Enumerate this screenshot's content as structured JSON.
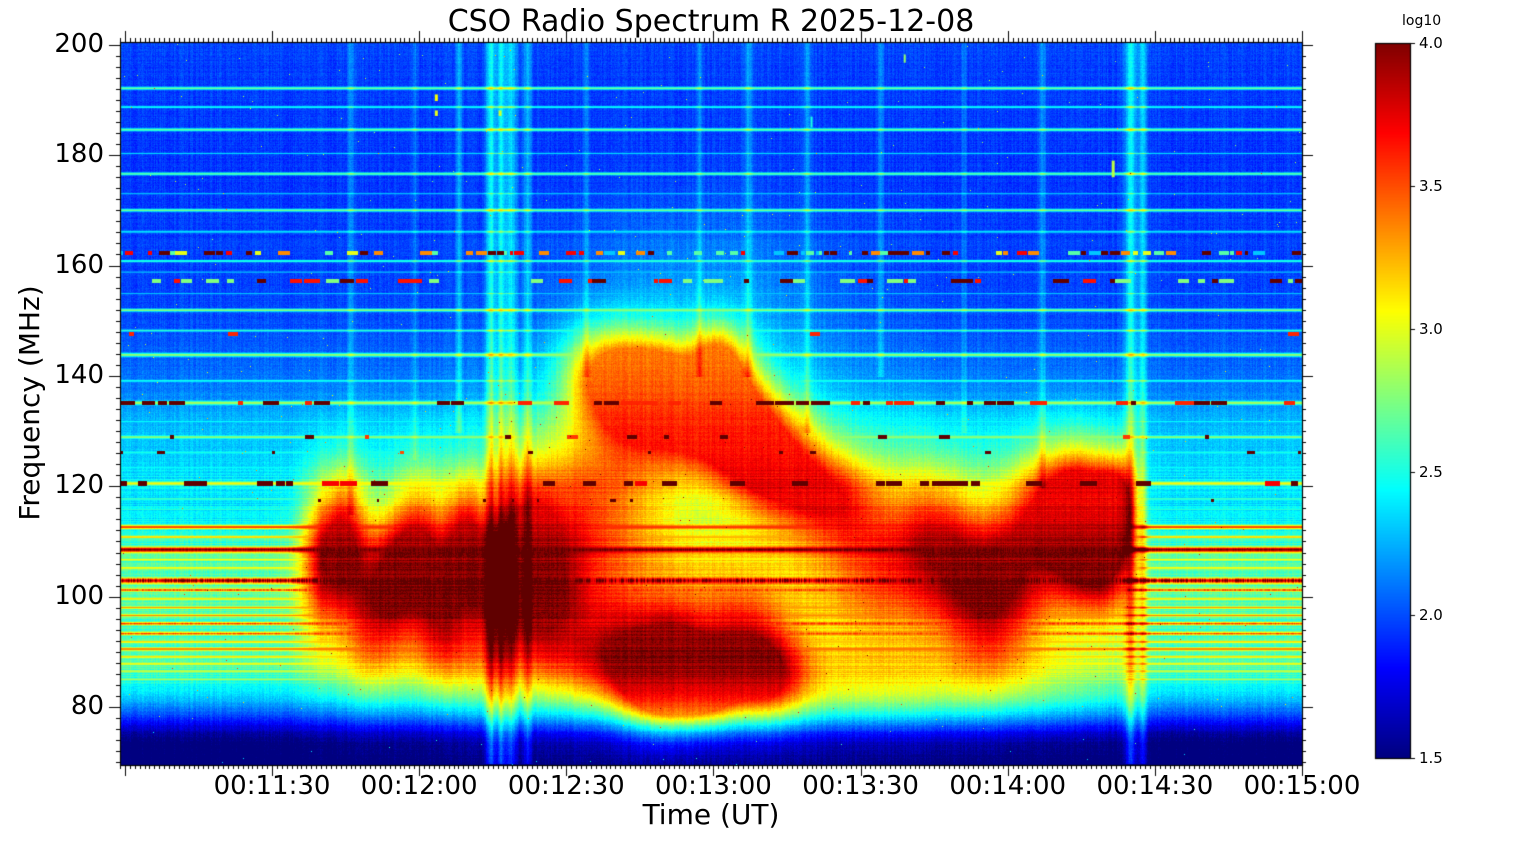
{
  "chart_data": {
    "type": "heatmap",
    "subtype": "radio-spectrogram",
    "title": "CSO Radio Spectrum R 2025-12-08",
    "xlabel": "Time (UT)",
    "ylabel": "Frequency (MHz)",
    "x_range_ut": [
      "00:10:59",
      "00:15:00"
    ],
    "y_range_mhz": [
      69.5,
      200.5
    ],
    "x_ticks": [
      "00:11:30",
      "00:12:00",
      "00:12:30",
      "00:13:00",
      "00:13:30",
      "00:14:00",
      "00:14:30",
      "00:15:00"
    ],
    "y_ticks": [
      "200",
      "180",
      "160",
      "140",
      "120",
      "100",
      "80"
    ],
    "x_minor_tick_sec": 1,
    "y_minor_tick_mhz": 2,
    "colorbar": {
      "title": "log10",
      "ticks": [
        "4.0",
        "3.5",
        "3.0",
        "2.5",
        "2.0",
        "1.5"
      ],
      "scale_range": [
        1.5,
        4.0
      ],
      "colormap": "jet"
    },
    "base_spectrum_log10": [
      [
        69.5,
        1.42
      ],
      [
        73,
        1.45
      ],
      [
        75,
        1.55
      ],
      [
        77,
        1.8
      ],
      [
        79,
        2.05
      ],
      [
        81,
        2.25
      ],
      [
        83,
        2.4
      ],
      [
        85,
        2.52
      ],
      [
        87,
        2.6
      ],
      [
        90,
        2.63
      ],
      [
        93,
        2.6
      ],
      [
        96,
        2.62
      ],
      [
        99,
        2.65
      ],
      [
        102,
        2.67
      ],
      [
        105,
        2.63
      ],
      [
        108,
        2.6
      ],
      [
        110,
        2.56
      ],
      [
        112,
        2.5
      ],
      [
        114,
        2.44
      ],
      [
        116,
        2.4
      ],
      [
        118,
        2.38
      ],
      [
        121,
        2.4
      ],
      [
        124,
        2.34
      ],
      [
        127,
        2.3
      ],
      [
        130,
        2.28
      ],
      [
        133,
        2.24
      ],
      [
        136,
        2.16
      ],
      [
        139,
        2.1
      ],
      [
        142,
        2.06
      ],
      [
        146,
        2.02
      ],
      [
        150,
        2.0
      ],
      [
        155,
        1.98
      ],
      [
        160,
        1.97
      ],
      [
        166,
        1.96
      ],
      [
        172,
        1.95
      ],
      [
        178,
        1.94
      ],
      [
        184,
        1.95
      ],
      [
        190,
        1.96
      ],
      [
        196,
        1.97
      ],
      [
        200.5,
        1.98
      ]
    ],
    "carrier_lines": [
      {
        "f": 192.2,
        "v": 2.72,
        "w": 2
      },
      {
        "f": 188.8,
        "v": 2.5,
        "w": 1.5
      },
      {
        "f": 184.7,
        "v": 2.7,
        "w": 2
      },
      {
        "f": 180.4,
        "v": 2.35,
        "w": 1
      },
      {
        "f": 176.7,
        "v": 2.68,
        "w": 2
      },
      {
        "f": 173.1,
        "v": 2.3,
        "w": 1
      },
      {
        "f": 170.1,
        "v": 2.72,
        "w": 2
      },
      {
        "f": 166.2,
        "v": 2.4,
        "w": 1.5
      },
      {
        "f": 160.9,
        "v": 2.6,
        "w": 1.5
      },
      {
        "f": 158.9,
        "v": 2.3,
        "w": 1
      },
      {
        "f": 155.0,
        "v": 2.3,
        "w": 1
      },
      {
        "f": 152.0,
        "v": 2.78,
        "w": 2
      },
      {
        "f": 148.3,
        "v": 2.55,
        "w": 1.5
      },
      {
        "f": 143.9,
        "v": 2.82,
        "w": 2.5
      },
      {
        "f": 139.2,
        "v": 2.5,
        "w": 1.5
      },
      {
        "f": 135.2,
        "v": 2.88,
        "w": 2.5
      },
      {
        "f": 131.8,
        "v": 2.45,
        "w": 1
      },
      {
        "f": 129.0,
        "v": 2.8,
        "w": 2
      },
      {
        "f": 126.2,
        "v": 2.5,
        "w": 1.5
      },
      {
        "f": 123.5,
        "v": 2.45,
        "w": 1
      },
      {
        "f": 120.6,
        "v": 3.08,
        "w": 2.5
      },
      {
        "f": 117.8,
        "v": 2.6,
        "w": 1.5
      },
      {
        "f": 115.9,
        "v": 2.55,
        "w": 1
      },
      {
        "f": 112.7,
        "v": 3.58,
        "w": 2.5
      },
      {
        "f": 110.9,
        "v": 3.28,
        "w": 1.5
      },
      {
        "f": 108.6,
        "v": 4.02,
        "w": 3.5,
        "jitter": 0.08
      },
      {
        "f": 106.8,
        "v": 3.05,
        "w": 1.5
      },
      {
        "f": 105.3,
        "v": 3.1,
        "w": 1.5
      },
      {
        "f": 103.0,
        "v": 3.97,
        "w": 3.5,
        "jitter": 0.3
      },
      {
        "f": 101.3,
        "v": 3.5,
        "w": 2,
        "jitter": 0.15
      },
      {
        "f": 99.7,
        "v": 3.15,
        "w": 1.5
      },
      {
        "f": 98.1,
        "v": 3.3,
        "w": 1.5
      },
      {
        "f": 96.7,
        "v": 3.35,
        "w": 1.5
      },
      {
        "f": 95.2,
        "v": 3.52,
        "w": 2,
        "jitter": 0.12
      },
      {
        "f": 93.4,
        "v": 3.48,
        "w": 2,
        "jitter": 0.12
      },
      {
        "f": 91.9,
        "v": 3.2,
        "w": 1.5
      },
      {
        "f": 90.6,
        "v": 3.42,
        "w": 2
      },
      {
        "f": 89.2,
        "v": 3.15,
        "w": 1.5
      },
      {
        "f": 87.9,
        "v": 3.1,
        "w": 1.5
      },
      {
        "f": 86.6,
        "v": 2.95,
        "w": 1.5
      },
      {
        "f": 85.1,
        "v": 2.85,
        "w": 1.5
      }
    ],
    "dashed_lines": [
      {
        "f": 162.4,
        "w": 3,
        "segMin": 3,
        "segMax": 12,
        "density": 0.62,
        "palette": [
          [
            4.05,
            0.28
          ],
          [
            3.7,
            0.22
          ],
          [
            3.35,
            0.12
          ],
          [
            3.0,
            0.08
          ],
          [
            2.65,
            0.2
          ],
          [
            2.3,
            0.1
          ]
        ],
        "seed": 7
      },
      {
        "f": 157.3,
        "w": 3,
        "segMin": 4,
        "segMax": 16,
        "density": 0.5,
        "palette": [
          [
            4.05,
            0.25
          ],
          [
            3.65,
            0.3
          ],
          [
            2.75,
            0.45
          ]
        ],
        "seed": 11
      },
      {
        "f": 147.6,
        "w": 3,
        "segMin": 5,
        "segMax": 12,
        "density": 0.05,
        "palette": [
          [
            3.6,
            0.7
          ],
          [
            4.05,
            0.3
          ]
        ],
        "seed": 13
      },
      {
        "f": 135.2,
        "w": 3.5,
        "segMin": 5,
        "segMax": 20,
        "density": 0.3,
        "palette": [
          [
            4.05,
            0.72
          ],
          [
            3.6,
            0.28
          ]
        ],
        "seed": 17
      },
      {
        "f": 129.0,
        "w": 3,
        "segMin": 4,
        "segMax": 12,
        "density": 0.1,
        "palette": [
          [
            4.05,
            0.8
          ],
          [
            3.55,
            0.2
          ]
        ],
        "seed": 19
      },
      {
        "f": 126.2,
        "w": 2.5,
        "segMin": 3,
        "segMax": 9,
        "density": 0.07,
        "palette": [
          [
            4.05,
            0.7
          ],
          [
            3.5,
            0.3
          ]
        ],
        "seed": 23
      },
      {
        "f": 120.6,
        "w": 3.5,
        "segMin": 5,
        "segMax": 18,
        "density": 0.33,
        "palette": [
          [
            4.05,
            0.78
          ],
          [
            3.7,
            0.22
          ]
        ],
        "seed": 29
      },
      {
        "f": 117.5,
        "w": 2,
        "segMin": 2,
        "segMax": 6,
        "density": 0.03,
        "palette": [
          [
            4.05,
            1.0
          ]
        ],
        "seed": 31
      }
    ],
    "burst_blobs": [
      {
        "t": 41,
        "f": 107,
        "st": 3.5,
        "sf": 9,
        "a": 0.85
      },
      {
        "t": 46,
        "f": 112,
        "st": 3,
        "sf": 8,
        "a": 0.8
      },
      {
        "t": 51,
        "f": 98,
        "st": 4,
        "sf": 9,
        "a": 0.7
      },
      {
        "t": 56,
        "f": 104,
        "st": 3,
        "sf": 8,
        "a": 0.6
      },
      {
        "t": 61,
        "f": 109,
        "st": 3.5,
        "sf": 9,
        "a": 0.85
      },
      {
        "t": 66,
        "f": 96,
        "st": 4,
        "sf": 8,
        "a": 0.7
      },
      {
        "t": 70,
        "f": 112,
        "st": 3,
        "sf": 7,
        "a": 0.75
      },
      {
        "t": 76,
        "f": 101,
        "st": 4,
        "sf": 11,
        "a": 0.7
      },
      {
        "t": 83,
        "f": 108,
        "st": 4,
        "sf": 10,
        "a": 0.75
      },
      {
        "t": 88,
        "f": 96,
        "st": 5,
        "sf": 9,
        "a": 0.6
      },
      {
        "t": 63,
        "f": 103,
        "st": 22,
        "sf": 13,
        "a": 0.42
      },
      {
        "t": 98,
        "f": 141,
        "st": 6,
        "sf": 6,
        "a": 0.85
      },
      {
        "t": 104,
        "f": 136,
        "st": 6,
        "sf": 7,
        "a": 0.8
      },
      {
        "t": 110,
        "f": 139,
        "st": 5,
        "sf": 6,
        "a": 0.75
      },
      {
        "t": 116,
        "f": 133,
        "st": 6,
        "sf": 7,
        "a": 0.85
      },
      {
        "t": 122,
        "f": 143,
        "st": 4,
        "sf": 5,
        "a": 0.85
      },
      {
        "t": 124,
        "f": 134,
        "st": 5,
        "sf": 6,
        "a": 0.9
      },
      {
        "t": 128,
        "f": 128,
        "st": 6,
        "sf": 7,
        "a": 0.9
      },
      {
        "t": 134,
        "f": 124,
        "st": 6,
        "sf": 7,
        "a": 0.8
      },
      {
        "t": 141,
        "f": 120,
        "st": 6,
        "sf": 6,
        "a": 0.65
      },
      {
        "t": 148,
        "f": 117,
        "st": 6,
        "sf": 6,
        "a": 0.5
      },
      {
        "t": 115,
        "f": 135,
        "st": 18,
        "sf": 11,
        "a": 0.38
      },
      {
        "t": 100,
        "f": 90,
        "st": 6,
        "sf": 7,
        "a": 0.75
      },
      {
        "t": 108,
        "f": 85,
        "st": 5,
        "sf": 6,
        "a": 0.9
      },
      {
        "t": 113,
        "f": 88,
        "st": 5,
        "sf": 7,
        "a": 1.0
      },
      {
        "t": 119,
        "f": 84,
        "st": 5,
        "sf": 5,
        "a": 0.95
      },
      {
        "t": 126,
        "f": 90,
        "st": 6,
        "sf": 7,
        "a": 0.8
      },
      {
        "t": 133,
        "f": 86,
        "st": 5,
        "sf": 6,
        "a": 0.7
      },
      {
        "t": 120,
        "f": 100,
        "st": 40,
        "sf": 17,
        "a": 0.45
      },
      {
        "t": 155,
        "f": 108,
        "st": 8,
        "sf": 12,
        "a": 0.5
      },
      {
        "t": 166,
        "f": 113,
        "st": 6,
        "sf": 8,
        "a": 0.6
      },
      {
        "t": 172,
        "f": 103,
        "st": 6,
        "sf": 9,
        "a": 0.55
      },
      {
        "t": 179,
        "f": 97,
        "st": 6,
        "sf": 8,
        "a": 0.55
      },
      {
        "t": 183,
        "f": 110,
        "st": 5,
        "sf": 8,
        "a": 0.6
      },
      {
        "t": 189,
        "f": 118,
        "st": 5,
        "sf": 7,
        "a": 0.6
      },
      {
        "t": 193,
        "f": 112,
        "st": 4,
        "sf": 8,
        "a": 0.8
      },
      {
        "t": 197,
        "f": 115,
        "st": 4.5,
        "sf": 8,
        "a": 1.1
      },
      {
        "t": 201,
        "f": 109,
        "st": 4,
        "sf": 8,
        "a": 1.05
      },
      {
        "t": 204,
        "f": 118,
        "st": 3,
        "sf": 6,
        "a": 0.9
      },
      {
        "t": 185,
        "f": 105,
        "st": 18,
        "sf": 14,
        "a": 0.35
      },
      {
        "t": 150,
        "f": 82,
        "st": 35,
        "sf": 5,
        "a": 0.35
      },
      {
        "t": 118,
        "f": 155,
        "st": 20,
        "sf": 12,
        "a": 0.18
      },
      {
        "t": 100,
        "f": 120,
        "st": 10,
        "sf": 10,
        "a": 0.5
      },
      {
        "t": 90,
        "f": 115,
        "st": 8,
        "sf": 10,
        "a": 0.45
      }
    ],
    "burst_gate_sec": {
      "rise": [
        28,
        42
      ],
      "fall": [
        204,
        212
      ]
    },
    "vertical_streaks": [
      {
        "t": 75.5,
        "s": 0.7,
        "a": 0.5,
        "f1": 70,
        "f2": 200.5
      },
      {
        "t": 77.5,
        "s": 0.5,
        "a": 0.45,
        "f1": 70,
        "f2": 200.5
      },
      {
        "t": 79.5,
        "s": 0.9,
        "a": 0.4,
        "f1": 70,
        "f2": 200.5
      },
      {
        "t": 83,
        "s": 0.6,
        "a": 0.3,
        "f1": 70,
        "f2": 200.5
      },
      {
        "t": 69,
        "s": 0.5,
        "a": 0.25,
        "f1": 130,
        "f2": 200.5
      },
      {
        "t": 47,
        "s": 0.5,
        "a": 0.2,
        "f1": 115,
        "f2": 200.5
      },
      {
        "t": 140,
        "s": 0.6,
        "a": 0.22,
        "f1": 130,
        "f2": 200.5
      },
      {
        "t": 155,
        "s": 0.5,
        "a": 0.18,
        "f1": 140,
        "f2": 200.5
      },
      {
        "t": 206,
        "s": 0.8,
        "a": 0.5,
        "f1": 70,
        "f2": 200.5
      },
      {
        "t": 208.5,
        "s": 0.6,
        "a": 0.4,
        "f1": 70,
        "f2": 200.5
      },
      {
        "t": 188,
        "s": 0.5,
        "a": 0.2,
        "f1": 120,
        "f2": 200.5
      },
      {
        "t": 128,
        "s": 0.6,
        "a": 0.25,
        "f1": 140,
        "f2": 200.5
      },
      {
        "t": 118,
        "s": 0.5,
        "a": 0.2,
        "f1": 140,
        "f2": 200.5
      },
      {
        "t": 95,
        "s": 0.4,
        "a": 0.18,
        "f1": 140,
        "f2": 200.5
      },
      {
        "t": 172,
        "s": 0.4,
        "a": 0.15,
        "f1": 130,
        "f2": 200.5
      },
      {
        "t": 60,
        "s": 0.4,
        "a": 0.15,
        "f1": 125,
        "f2": 200.5
      }
    ],
    "spots": [
      {
        "t": 64.5,
        "f": 190.4,
        "v": 3.05,
        "dw": 3,
        "df": 1.2
      },
      {
        "t": 64.5,
        "f": 187.6,
        "v": 3.0,
        "dw": 3,
        "df": 1.0
      },
      {
        "t": 77.5,
        "f": 187.6,
        "v": 2.95,
        "dw": 3,
        "df": 1.0
      },
      {
        "t": 160,
        "f": 197.5,
        "v": 2.8,
        "dw": 2,
        "df": 1.5
      },
      {
        "t": 202.5,
        "f": 177.5,
        "v": 2.9,
        "dw": 3,
        "df": 3
      },
      {
        "t": 141,
        "f": 186,
        "v": 2.5,
        "dw": 2,
        "df": 2
      }
    ]
  }
}
